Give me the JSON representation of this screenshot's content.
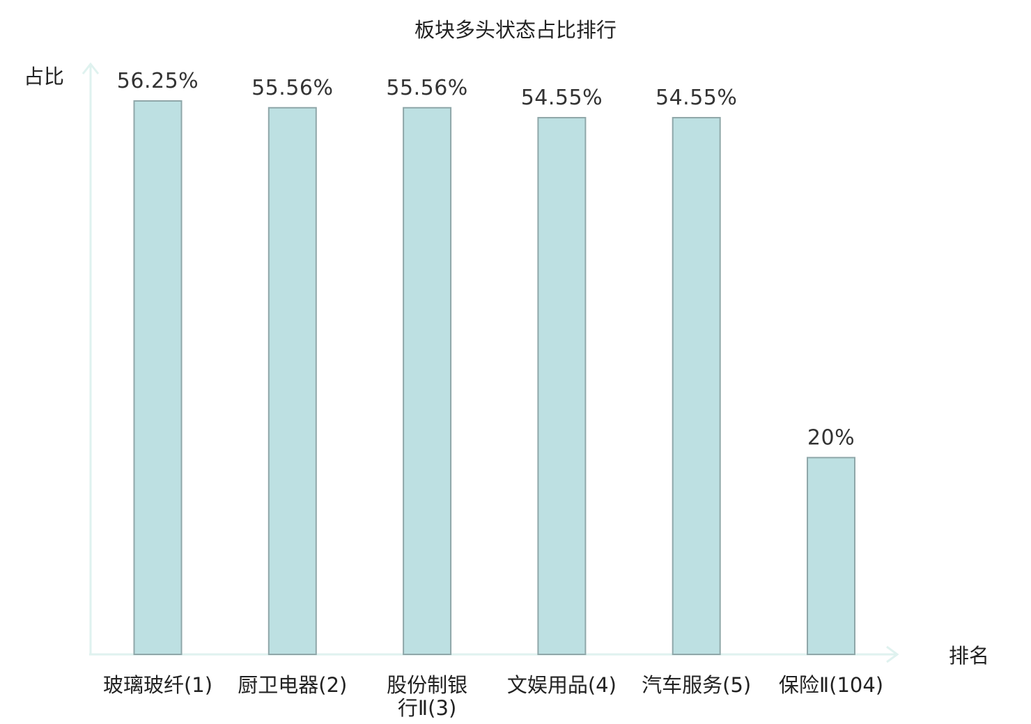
{
  "chart_data": {
    "type": "bar",
    "title": "板块多头状态占比排行",
    "xlabel": "排名",
    "ylabel": "占比",
    "categories": [
      [
        "玻璃玻纤(1)"
      ],
      [
        "厨卫电器(2)"
      ],
      [
        "股份制银",
        "行Ⅱ(3)"
      ],
      [
        "文娱用品(4)"
      ],
      [
        "汽车服务(5)"
      ],
      [
        "保险Ⅱ(104)"
      ]
    ],
    "values": [
      56.25,
      55.56,
      55.56,
      54.55,
      54.55,
      20
    ],
    "value_labels": [
      "56.25%",
      "55.56%",
      "55.56%",
      "54.55%",
      "54.55%",
      "20%"
    ],
    "highlight_index": 5,
    "ylim": [
      0,
      56.25
    ],
    "grid": false,
    "colors": {
      "bar_fill": "#bde0e2",
      "bar_stroke": "#8fa7a9",
      "axis": "#dff2ef",
      "highlight_label": "#e02020",
      "text": "#222222"
    }
  }
}
